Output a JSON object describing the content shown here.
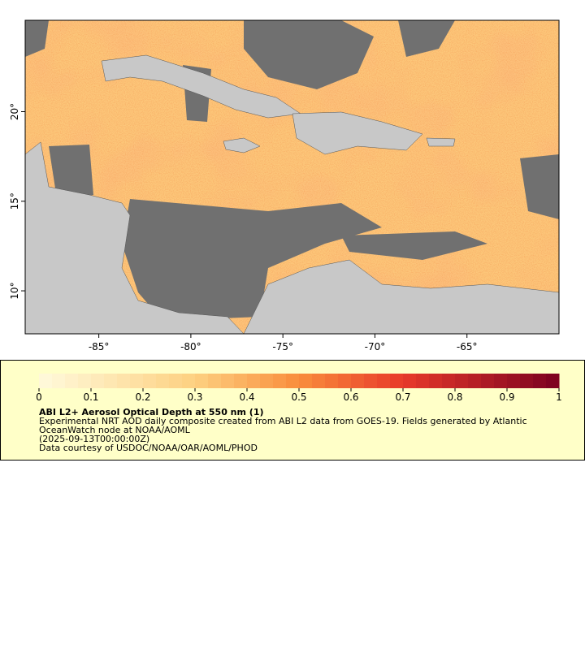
{
  "map": {
    "xlim": [
      -89,
      -60
    ],
    "ylim": [
      7.6,
      25.1
    ],
    "xticks": [
      {
        "value": -85,
        "label": "-85°"
      },
      {
        "value": -80,
        "label": "-80°"
      },
      {
        "value": -75,
        "label": "-75°"
      },
      {
        "value": -70,
        "label": "-70°"
      },
      {
        "value": -65,
        "label": "-65°"
      }
    ],
    "yticks": [
      {
        "value": 10,
        "label": "10°"
      },
      {
        "value": 15,
        "label": "15°"
      },
      {
        "value": 20,
        "label": "20°"
      }
    ]
  },
  "colorbar": {
    "lim": [
      0,
      1
    ],
    "ticks": [
      0,
      0.1,
      0.2,
      0.3,
      0.4,
      0.5,
      0.6,
      0.7,
      0.8,
      0.9,
      1
    ]
  },
  "legend": {
    "title": "ABI L2+ Aerosol Optical Depth at 550 nm (1)",
    "lines": [
      "Experimental NRT AOD daily composite created from ABI L2 data from GOES-19. Fields generated by Atlantic",
      "OceanWatch node at NOAA/AOML",
      "(2025-09-13T00:00:00Z)",
      "Data courtesy of USDOC/NOAA/OAR/AOML/PHOD"
    ]
  }
}
